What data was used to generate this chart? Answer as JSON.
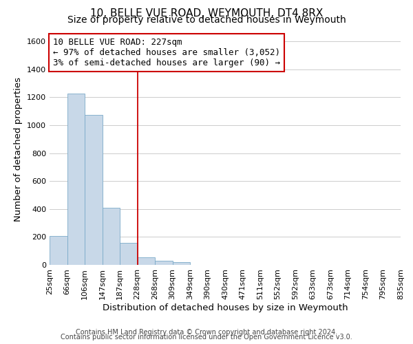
{
  "title": "10, BELLE VUE ROAD, WEYMOUTH, DT4 8RX",
  "subtitle": "Size of property relative to detached houses in Weymouth",
  "xlabel": "Distribution of detached houses by size in Weymouth",
  "ylabel": "Number of detached properties",
  "bar_labels": [
    "25sqm",
    "66sqm",
    "106sqm",
    "147sqm",
    "187sqm",
    "228sqm",
    "268sqm",
    "309sqm",
    "349sqm",
    "390sqm",
    "430sqm",
    "471sqm",
    "511sqm",
    "552sqm",
    "592sqm",
    "633sqm",
    "673sqm",
    "714sqm",
    "754sqm",
    "795sqm",
    "835sqm"
  ],
  "bar_heights": [
    205,
    1225,
    1075,
    410,
    160,
    55,
    28,
    18,
    0,
    0,
    0,
    0,
    0,
    0,
    0,
    0,
    0,
    0,
    0,
    0
  ],
  "bar_color": "#c8d8e8",
  "bar_edgecolor": "#7aaac8",
  "n_bars": 20,
  "ylim": [
    0,
    1650
  ],
  "yticks": [
    0,
    200,
    400,
    600,
    800,
    1000,
    1200,
    1400,
    1600
  ],
  "property_bin_index": 5,
  "vline_color": "#cc0000",
  "annotation_line1": "10 BELLE VUE ROAD: 227sqm",
  "annotation_line2": "← 97% of detached houses are smaller (3,052)",
  "annotation_line3": "3% of semi-detached houses are larger (90) →",
  "annotation_box_facecolor": "white",
  "annotation_box_edgecolor": "#cc0000",
  "grid_color": "#cccccc",
  "footer_line1": "Contains HM Land Registry data © Crown copyright and database right 2024.",
  "footer_line2": "Contains public sector information licensed under the Open Government Licence v3.0.",
  "title_fontsize": 11,
  "subtitle_fontsize": 10,
  "axis_label_fontsize": 9.5,
  "tick_fontsize": 8,
  "annotation_fontsize": 9,
  "footer_fontsize": 7
}
